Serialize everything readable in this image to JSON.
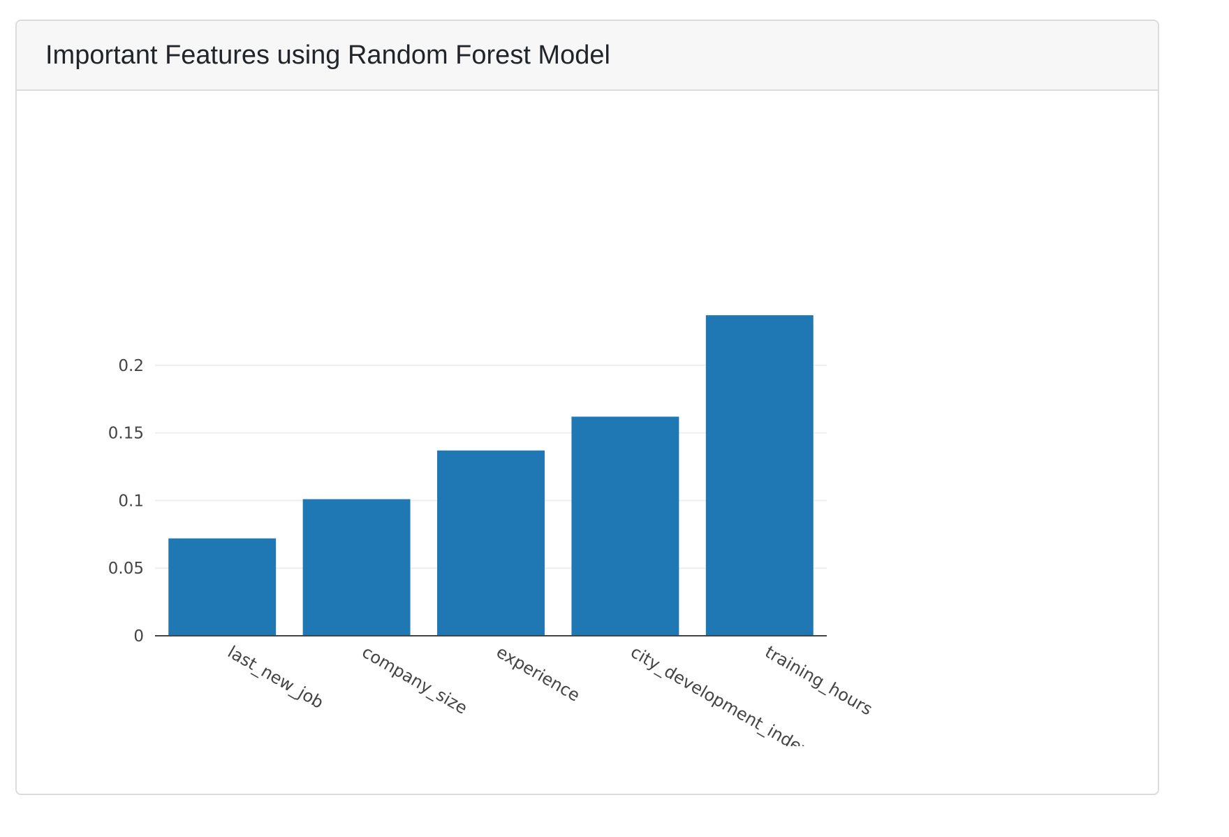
{
  "card": {
    "title": "Important Features using Random Forest Model"
  },
  "colors": {
    "bar": "#1f77b4",
    "grid": "#eeeeee",
    "axis": "#444444",
    "header_bg": "#f7f7f7",
    "border": "#dcdcdc"
  },
  "chart_data": {
    "type": "bar",
    "title": "",
    "xlabel": "",
    "ylabel": "",
    "categories": [
      "last_new_job",
      "company_size",
      "experience",
      "city_development_index",
      "training_hours"
    ],
    "values": [
      0.072,
      0.101,
      0.137,
      0.162,
      0.237
    ],
    "yticks": [
      0,
      0.05,
      0.1,
      0.15,
      0.2
    ],
    "ytick_labels": [
      "0",
      "0.05",
      "0.1",
      "0.15",
      "0.2"
    ],
    "ylim": [
      0,
      0.237
    ],
    "grid": true,
    "legend": "none",
    "x_tick_rotation_deg": 30
  }
}
